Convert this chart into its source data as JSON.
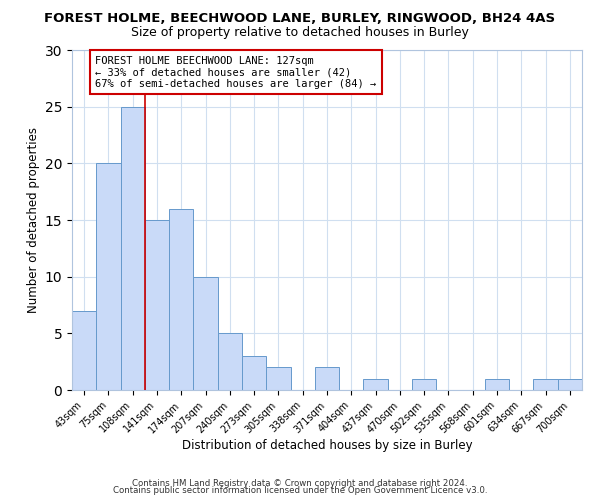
{
  "title": "FOREST HOLME, BEECHWOOD LANE, BURLEY, RINGWOOD, BH24 4AS",
  "subtitle": "Size of property relative to detached houses in Burley",
  "xlabel": "Distribution of detached houses by size in Burley",
  "ylabel": "Number of detached properties",
  "bin_labels": [
    "43sqm",
    "75sqm",
    "108sqm",
    "141sqm",
    "174sqm",
    "207sqm",
    "240sqm",
    "273sqm",
    "305sqm",
    "338sqm",
    "371sqm",
    "404sqm",
    "437sqm",
    "470sqm",
    "502sqm",
    "535sqm",
    "568sqm",
    "601sqm",
    "634sqm",
    "667sqm",
    "700sqm"
  ],
  "bar_values": [
    7,
    20,
    25,
    15,
    16,
    10,
    5,
    3,
    2,
    0,
    2,
    0,
    1,
    0,
    1,
    0,
    0,
    1,
    0,
    1,
    1
  ],
  "bar_color": "#c9daf8",
  "bar_edge_color": "#6699cc",
  "annotation_title": "FOREST HOLME BEECHWOOD LANE: 127sqm",
  "annotation_line1": "← 33% of detached houses are smaller (42)",
  "annotation_line2": "67% of semi-detached houses are larger (84) →",
  "annotation_box_color": "#ffffff",
  "annotation_box_edge": "#cc0000",
  "highlight_line_color": "#cc0000",
  "ylim": [
    0,
    30
  ],
  "yticks": [
    0,
    5,
    10,
    15,
    20,
    25,
    30
  ],
  "footer1": "Contains HM Land Registry data © Crown copyright and database right 2024.",
  "footer2": "Contains public sector information licensed under the Open Government Licence v3.0."
}
